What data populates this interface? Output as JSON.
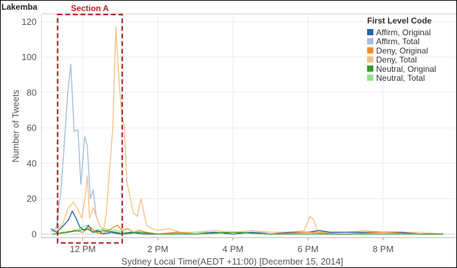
{
  "chart_data": {
    "type": "line",
    "panel_title": "Lakemba",
    "title": "",
    "xlabel": "Sydney Local Time(AEDT +11:00) [December 15, 2014]",
    "ylabel": "Number of Tweets",
    "ylim": [
      -2,
      124
    ],
    "yticks": [
      0,
      20,
      40,
      60,
      80,
      100,
      120
    ],
    "x_unit": "hours after midnight",
    "xlim": [
      10.9,
      21.95
    ],
    "xticks": [
      {
        "x": 12,
        "label": "12 PM"
      },
      {
        "x": 14,
        "label": "2 PM"
      },
      {
        "x": 16,
        "label": "4 PM"
      },
      {
        "x": 18,
        "label": "6 PM"
      },
      {
        "x": 20,
        "label": "8 PM"
      }
    ],
    "grid": true,
    "legend": {
      "title": "First Level Code",
      "placement": "top-right"
    },
    "annotation": {
      "label": "Section A",
      "x_range": [
        11.33,
        13.05
      ],
      "y_range": [
        -5,
        124
      ],
      "color": "#b22222"
    },
    "series": [
      {
        "name": "Affirm, Original",
        "color": "#2066a8",
        "points": [
          [
            11.15,
            3
          ],
          [
            11.3,
            1
          ],
          [
            11.45,
            4
          ],
          [
            11.62,
            8
          ],
          [
            11.72,
            13
          ],
          [
            11.82,
            9
          ],
          [
            11.92,
            4
          ],
          [
            12.05,
            2
          ],
          [
            12.15,
            5
          ],
          [
            12.25,
            1
          ],
          [
            12.4,
            2
          ],
          [
            12.55,
            0
          ],
          [
            12.75,
            1
          ],
          [
            13.0,
            0
          ],
          [
            13.3,
            1
          ],
          [
            13.6,
            0
          ],
          [
            14.0,
            0
          ],
          [
            14.5,
            1
          ],
          [
            15.0,
            0
          ],
          [
            15.5,
            1
          ],
          [
            16.0,
            0
          ],
          [
            16.5,
            1
          ],
          [
            17.0,
            0
          ],
          [
            17.5,
            1
          ],
          [
            18.0,
            1
          ],
          [
            18.3,
            2
          ],
          [
            18.6,
            1
          ],
          [
            19.0,
            1
          ],
          [
            19.5,
            1
          ],
          [
            20.0,
            1
          ],
          [
            20.5,
            1
          ],
          [
            21.0,
            0
          ],
          [
            21.6,
            0
          ]
        ]
      },
      {
        "name": "Affirm, Total",
        "color": "#a6bddb",
        "points": [
          [
            11.15,
            1
          ],
          [
            11.3,
            4
          ],
          [
            11.42,
            25
          ],
          [
            11.52,
            55
          ],
          [
            11.6,
            80
          ],
          [
            11.68,
            96
          ],
          [
            11.77,
            58
          ],
          [
            11.87,
            59
          ],
          [
            11.95,
            28
          ],
          [
            12.05,
            55
          ],
          [
            12.12,
            50
          ],
          [
            12.2,
            20
          ],
          [
            12.28,
            25
          ],
          [
            12.36,
            10
          ],
          [
            12.45,
            5
          ],
          [
            12.55,
            2
          ],
          [
            12.7,
            1
          ],
          [
            12.85,
            1
          ],
          [
            13.0,
            0
          ],
          [
            13.5,
            1
          ],
          [
            14.0,
            0
          ],
          [
            15.0,
            1
          ],
          [
            16.0,
            1
          ],
          [
            17.0,
            1
          ],
          [
            18.0,
            1
          ],
          [
            18.5,
            1
          ],
          [
            19.0,
            1
          ],
          [
            20.0,
            1
          ],
          [
            21.0,
            0
          ],
          [
            21.6,
            0
          ]
        ]
      },
      {
        "name": "Deny, Original",
        "color": "#f28e2b",
        "points": [
          [
            11.2,
            0
          ],
          [
            11.5,
            1
          ],
          [
            11.8,
            2
          ],
          [
            12.0,
            1
          ],
          [
            12.2,
            4
          ],
          [
            12.35,
            1
          ],
          [
            12.5,
            0
          ],
          [
            12.75,
            3
          ],
          [
            12.92,
            5
          ],
          [
            13.05,
            2
          ],
          [
            13.2,
            3
          ],
          [
            13.35,
            1
          ],
          [
            13.5,
            2
          ],
          [
            13.7,
            1
          ],
          [
            14.0,
            0
          ],
          [
            14.5,
            1
          ],
          [
            15.0,
            0
          ],
          [
            16.0,
            1
          ],
          [
            17.0,
            0
          ],
          [
            18.0,
            1
          ],
          [
            19.0,
            0
          ],
          [
            20.0,
            1
          ],
          [
            21.0,
            0
          ],
          [
            21.6,
            0
          ]
        ]
      },
      {
        "name": "Deny, Total",
        "color": "#f6c085",
        "points": [
          [
            11.2,
            1
          ],
          [
            11.45,
            5
          ],
          [
            11.62,
            15
          ],
          [
            11.75,
            18
          ],
          [
            11.87,
            14
          ],
          [
            11.97,
            9
          ],
          [
            12.06,
            20
          ],
          [
            12.12,
            33
          ],
          [
            12.18,
            9
          ],
          [
            12.28,
            15
          ],
          [
            12.36,
            10
          ],
          [
            12.45,
            5
          ],
          [
            12.55,
            2
          ],
          [
            12.63,
            12
          ],
          [
            12.72,
            38
          ],
          [
            12.8,
            60
          ],
          [
            12.88,
            117
          ],
          [
            12.97,
            85
          ],
          [
            13.05,
            65
          ],
          [
            13.1,
            62
          ],
          [
            13.17,
            30
          ],
          [
            13.25,
            22
          ],
          [
            13.35,
            12
          ],
          [
            13.45,
            10
          ],
          [
            13.55,
            20
          ],
          [
            13.7,
            5
          ],
          [
            13.85,
            3
          ],
          [
            14.0,
            2
          ],
          [
            14.3,
            3
          ],
          [
            14.6,
            1
          ],
          [
            15.0,
            1
          ],
          [
            15.5,
            2
          ],
          [
            16.0,
            1
          ],
          [
            16.5,
            2
          ],
          [
            17.0,
            1
          ],
          [
            17.5,
            1
          ],
          [
            17.9,
            2
          ],
          [
            18.05,
            10
          ],
          [
            18.15,
            8
          ],
          [
            18.25,
            2
          ],
          [
            18.5,
            1
          ],
          [
            19.0,
            1
          ],
          [
            19.5,
            2
          ],
          [
            20.0,
            1
          ],
          [
            20.5,
            1
          ],
          [
            21.0,
            1
          ],
          [
            21.6,
            0
          ]
        ]
      },
      {
        "name": "Neutral, Original",
        "color": "#2ca02c",
        "points": [
          [
            11.2,
            0
          ],
          [
            11.6,
            1
          ],
          [
            11.9,
            2
          ],
          [
            12.1,
            3
          ],
          [
            12.3,
            1
          ],
          [
            12.6,
            2
          ],
          [
            12.9,
            1
          ],
          [
            13.1,
            0
          ],
          [
            13.5,
            1
          ],
          [
            14.0,
            0
          ],
          [
            15.0,
            0
          ],
          [
            16.0,
            1
          ],
          [
            17.0,
            0
          ],
          [
            18.0,
            0
          ],
          [
            19.0,
            0
          ],
          [
            20.0,
            0
          ],
          [
            21.0,
            0
          ],
          [
            21.6,
            0
          ]
        ]
      },
      {
        "name": "Neutral, Total",
        "color": "#98df8a",
        "points": [
          [
            11.2,
            0
          ],
          [
            11.6,
            1
          ],
          [
            11.9,
            3
          ],
          [
            12.1,
            5
          ],
          [
            12.3,
            2
          ],
          [
            12.6,
            3
          ],
          [
            12.9,
            2
          ],
          [
            13.1,
            1
          ],
          [
            13.5,
            1
          ],
          [
            14.0,
            0
          ],
          [
            15.0,
            1
          ],
          [
            16.0,
            1
          ],
          [
            17.0,
            0
          ],
          [
            18.0,
            1
          ],
          [
            19.0,
            0
          ],
          [
            20.0,
            1
          ],
          [
            21.0,
            0
          ],
          [
            21.6,
            0
          ]
        ]
      }
    ]
  }
}
